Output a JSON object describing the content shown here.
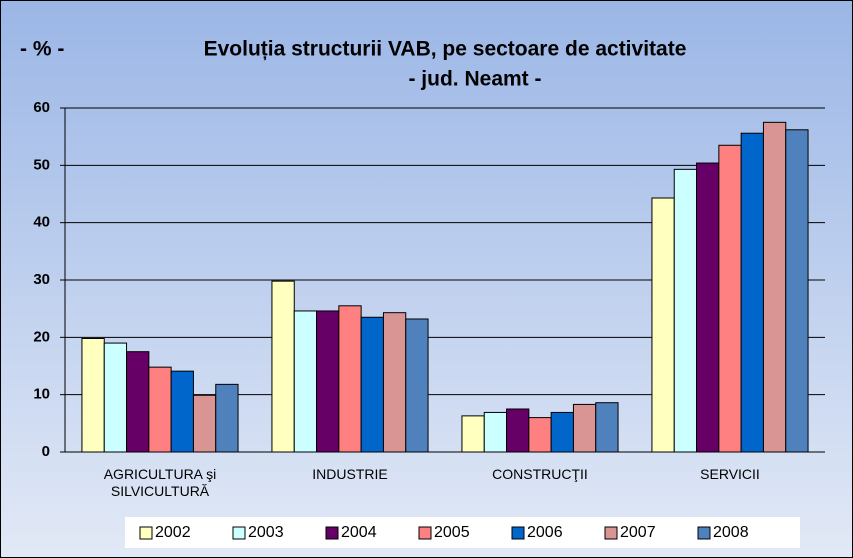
{
  "chart_data": {
    "type": "bar",
    "title": "Evoluția structurii VAB, pe sectoare de activitate",
    "subtitle": "- jud. Neamt -",
    "y_label": "- %  -",
    "categories": [
      "AGRICULTURA şi\nSILVICULTURĂ",
      "INDUSTRIE",
      "CONSTRUCŢII",
      "SERVICII"
    ],
    "series": [
      {
        "name": "2002",
        "color": "#ffffc0",
        "values": [
          19.8,
          29.8,
          6.3,
          44.3
        ]
      },
      {
        "name": "2003",
        "color": "#ccffff",
        "values": [
          19.0,
          24.6,
          6.9,
          49.3
        ]
      },
      {
        "name": "2004",
        "color": "#660066",
        "values": [
          17.5,
          24.6,
          7.5,
          50.4
        ]
      },
      {
        "name": "2005",
        "color": "#ff8080",
        "values": [
          14.8,
          25.5,
          6.0,
          53.5
        ]
      },
      {
        "name": "2006",
        "color": "#0066cc",
        "values": [
          14.1,
          23.5,
          6.9,
          55.6
        ]
      },
      {
        "name": "2007",
        "color": "#d99594",
        "values": [
          9.9,
          24.3,
          8.3,
          57.5
        ]
      },
      {
        "name": "2008",
        "color": "#4f81bd",
        "values": [
          11.8,
          23.2,
          8.6,
          56.2
        ]
      }
    ],
    "ylim": [
      0,
      60
    ],
    "yticks": [
      0,
      10,
      20,
      30,
      40,
      50,
      60
    ],
    "grid": true,
    "legend": "bottom"
  }
}
